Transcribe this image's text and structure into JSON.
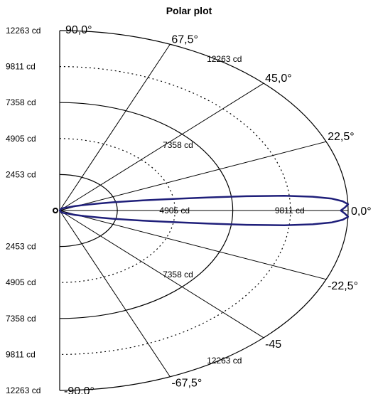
{
  "chart_data": {
    "type": "polar",
    "title": "Polar plot",
    "unit": "cd",
    "r_max": 12263,
    "half_plane": "right",
    "radial_tick_labels": [
      "12263 cd",
      "9811 cd",
      "7358 cd",
      "4905 cd",
      "2453 cd",
      "2453 cd",
      "4905 cd",
      "7358 cd",
      "9811 cd",
      "12263 cd"
    ],
    "rings": [
      {
        "value": 2453,
        "style": "solid"
      },
      {
        "value": 4905,
        "style": "dotted"
      },
      {
        "value": 7358,
        "style": "solid"
      },
      {
        "value": 9811,
        "style": "dotted"
      },
      {
        "value": 12263,
        "style": "solid"
      }
    ],
    "ring_labels": [
      {
        "text": "4905 cd",
        "ring": 4905,
        "angle_deg": 0
      },
      {
        "text": "9811 cd",
        "ring": 9811,
        "angle_deg": 0
      },
      {
        "text": "7358 cd",
        "ring": 7358,
        "angle_deg": 22.5
      },
      {
        "text": "7358 cd",
        "ring": 7358,
        "angle_deg": -22.5
      },
      {
        "text": "12263 cd",
        "ring": 12263,
        "angle_deg": 45
      },
      {
        "text": "12263 cd",
        "ring": 12263,
        "angle_deg": -45
      }
    ],
    "spokes_deg": [
      90,
      67.5,
      45,
      22.5,
      0,
      -22.5,
      -45,
      -67.5,
      -90
    ],
    "angle_labels": [
      {
        "text": "90,0°",
        "angle_deg": 90
      },
      {
        "text": "67,5°",
        "angle_deg": 67.5
      },
      {
        "text": "45,0°",
        "angle_deg": 45
      },
      {
        "text": "22,5°",
        "angle_deg": 22.5
      },
      {
        "text": "0,0°",
        "angle_deg": 0
      },
      {
        "text": "-22,5°",
        "angle_deg": -22.5
      },
      {
        "text": "-45",
        "angle_deg": -45
      },
      {
        "text": "-67,5°",
        "angle_deg": -67.5
      },
      {
        "text": "-90,0°",
        "angle_deg": -90
      }
    ],
    "series": [
      {
        "color": "#1f1f7a",
        "points": [
          [
            -90,
            0
          ],
          [
            -60,
            150
          ],
          [
            -45,
            250
          ],
          [
            -30,
            450
          ],
          [
            -25,
            700
          ],
          [
            -20,
            1100
          ],
          [
            -16,
            1700
          ],
          [
            -14,
            2300
          ],
          [
            -12,
            3100
          ],
          [
            -11,
            3600
          ],
          [
            -10,
            4300
          ],
          [
            -9,
            5200
          ],
          [
            -8,
            6400
          ],
          [
            -7,
            8000
          ],
          [
            -6,
            9600
          ],
          [
            -5,
            10800
          ],
          [
            -4,
            11600
          ],
          [
            -3,
            12050
          ],
          [
            -2,
            12263
          ],
          [
            -1,
            12130
          ],
          [
            0,
            11950
          ],
          [
            1,
            12130
          ],
          [
            2,
            12263
          ],
          [
            3,
            12050
          ],
          [
            4,
            11600
          ],
          [
            5,
            10800
          ],
          [
            6,
            9600
          ],
          [
            7,
            8000
          ],
          [
            8,
            6400
          ],
          [
            9,
            5200
          ],
          [
            10,
            4300
          ],
          [
            11,
            3600
          ],
          [
            12,
            3100
          ],
          [
            14,
            2300
          ],
          [
            16,
            1700
          ],
          [
            20,
            1100
          ],
          [
            25,
            700
          ],
          [
            30,
            450
          ],
          [
            45,
            250
          ],
          [
            60,
            150
          ],
          [
            90,
            0
          ]
        ]
      }
    ],
    "grid": true,
    "legend": "none"
  }
}
